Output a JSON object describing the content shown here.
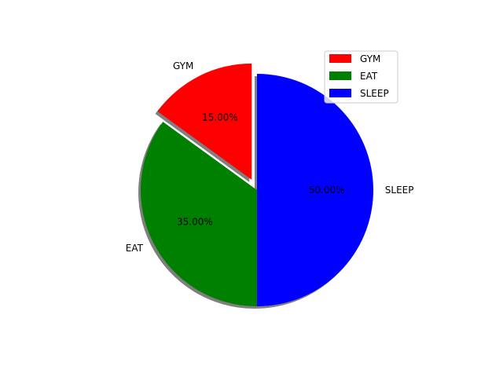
{
  "chart_data": {
    "type": "pie",
    "title": "",
    "labels": [
      "GYM",
      "EAT",
      "SLEEP"
    ],
    "values": [
      15,
      35,
      50
    ],
    "percent_labels": [
      "15.00%",
      "35.00%",
      "50.00%"
    ],
    "colors": [
      "#ff0000",
      "#008000",
      "#0000ff"
    ],
    "explode": [
      0.1,
      0,
      0
    ],
    "shadow": true,
    "start_angle_deg": 90,
    "counterclockwise": true,
    "legend_position": "upper-right"
  }
}
